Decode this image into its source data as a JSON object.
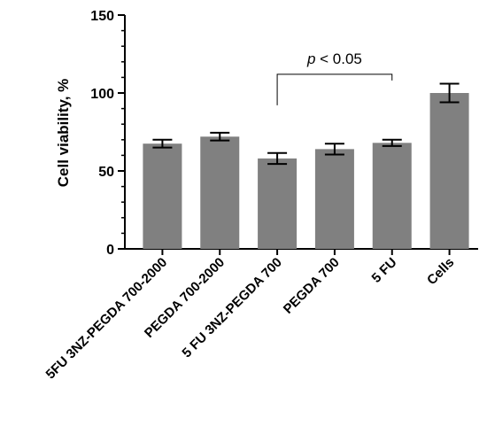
{
  "chart_data": {
    "type": "bar",
    "categories": [
      "5FU 3NZ-PEGDA 700-2000",
      "PEGDA 700-2000",
      "5 FU 3NZ-PEGDA 700",
      "PEGDA 700",
      "5 FU",
      "Cells"
    ],
    "values": [
      67.5,
      72,
      58,
      64,
      68,
      100
    ],
    "errors": [
      2.5,
      2.5,
      3.5,
      3.5,
      2,
      6
    ],
    "ylabel": "Cell viability, %",
    "xlabel": "",
    "ylim": [
      0,
      150
    ],
    "yticks": [
      0,
      50,
      100,
      150
    ],
    "grid": false,
    "bar_color": "#808080",
    "annotation": {
      "text_italic": "p",
      "text_rest": " < 0.05",
      "from_category": "5 FU 3NZ-PEGDA 700",
      "to_category": "5 FU",
      "y": 112
    }
  }
}
